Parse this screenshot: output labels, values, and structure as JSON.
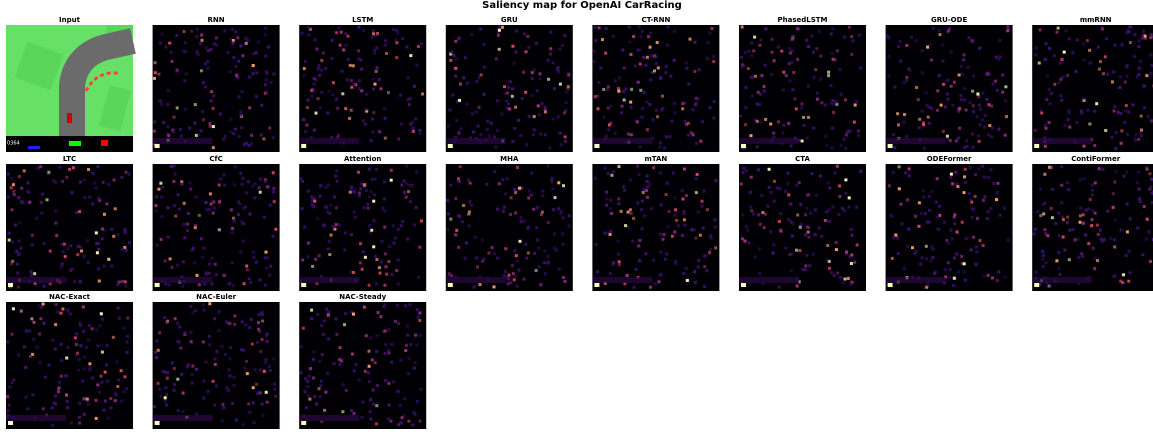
{
  "title": "Saliency map for OpenAI CarRacing",
  "input_score": "0364",
  "panels": [
    "Input",
    "RNN",
    "LSTM",
    "GRU",
    "CT-RNN",
    "PhasedLSTM",
    "GRU-ODE",
    "mmRNN",
    "LTC",
    "CfC",
    "Attention",
    "MHA",
    "mTAN",
    "CTA",
    "ODEFormer",
    "ContiFormer",
    "NAC-Exact",
    "NAC-Euler",
    "NAC-Steady"
  ]
}
